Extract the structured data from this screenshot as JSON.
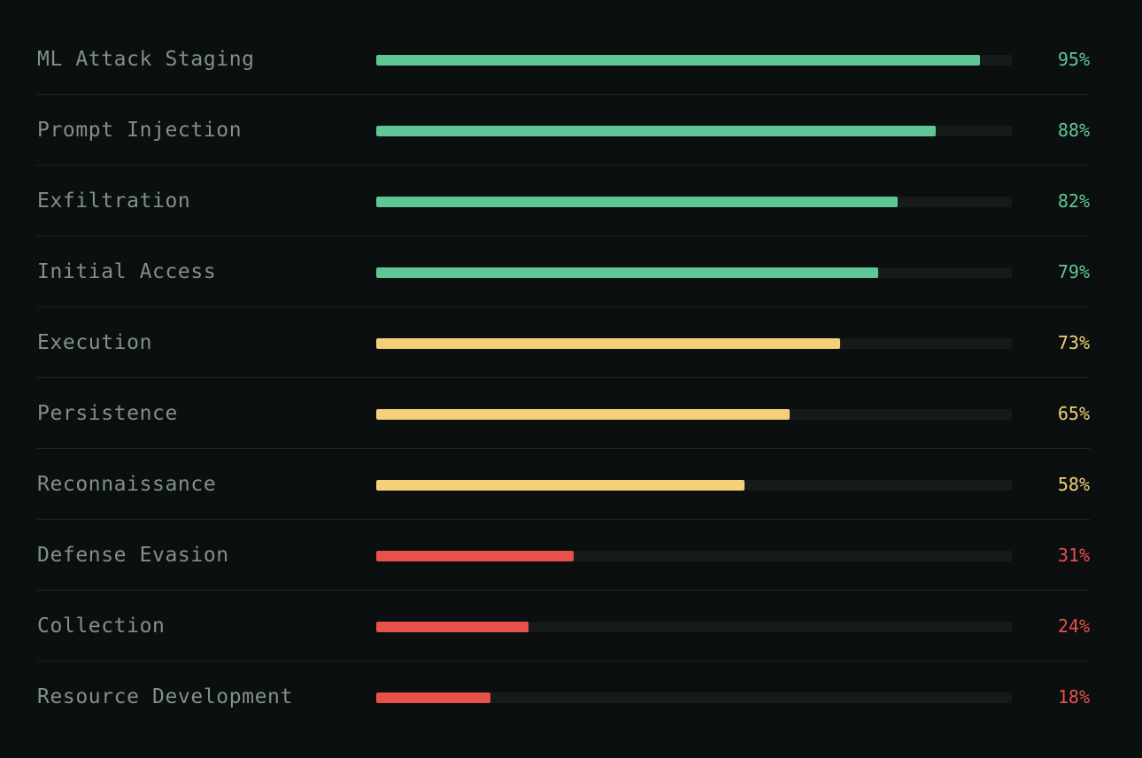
{
  "colors": {
    "high": "#5ec795",
    "medium": "#f4d078",
    "low": "#e8504a"
  },
  "chart_data": {
    "type": "bar",
    "orientation": "horizontal",
    "xlim": [
      0,
      100
    ],
    "categories": [
      "ML Attack Staging",
      "Prompt Injection",
      "Exfiltration",
      "Initial Access",
      "Execution",
      "Persistence",
      "Reconnaissance",
      "Defense Evasion",
      "Collection",
      "Resource Development"
    ],
    "values": [
      95,
      88,
      82,
      79,
      73,
      65,
      58,
      31,
      24,
      18
    ],
    "value_labels": [
      "95%",
      "88%",
      "82%",
      "79%",
      "73%",
      "65%",
      "58%",
      "31%",
      "24%",
      "18%"
    ],
    "tiers": [
      "high",
      "high",
      "high",
      "high",
      "medium",
      "medium",
      "medium",
      "low",
      "low",
      "low"
    ]
  }
}
